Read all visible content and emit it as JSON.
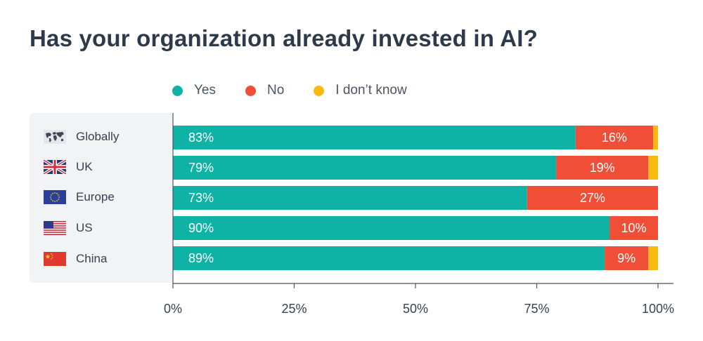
{
  "chart_data": {
    "type": "bar",
    "orientation": "horizontal",
    "stacked": true,
    "title": "Has your organization already invested in AI?",
    "categories": [
      "Globally",
      "UK",
      "Europe",
      "US",
      "China"
    ],
    "series": [
      {
        "name": "Yes",
        "color": "#0fb3a6",
        "values": [
          83,
          79,
          73,
          90,
          89
        ],
        "labels": [
          "83%",
          "79%",
          "73%",
          "90%",
          "89%"
        ]
      },
      {
        "name": "No",
        "color": "#f04e37",
        "values": [
          16,
          19,
          27,
          10,
          9
        ],
        "labels": [
          "16%",
          "19%",
          "27%",
          "10%",
          "9%"
        ]
      },
      {
        "name": "I don’t know",
        "color": "#fbb813",
        "values": [
          1,
          2,
          0,
          0,
          2
        ],
        "labels": [
          "",
          "",
          "",
          "",
          ""
        ]
      }
    ],
    "xlim": [
      0,
      100
    ],
    "xticks": [
      0,
      25,
      50,
      75,
      100
    ],
    "xtick_labels": [
      "0%",
      "25%",
      "50%",
      "75%",
      "100%"
    ],
    "legend_position": "top",
    "grid": false
  },
  "flags": [
    "world-map-icon",
    "uk-flag-icon",
    "eu-flag-icon",
    "us-flag-icon",
    "china-flag-icon"
  ]
}
